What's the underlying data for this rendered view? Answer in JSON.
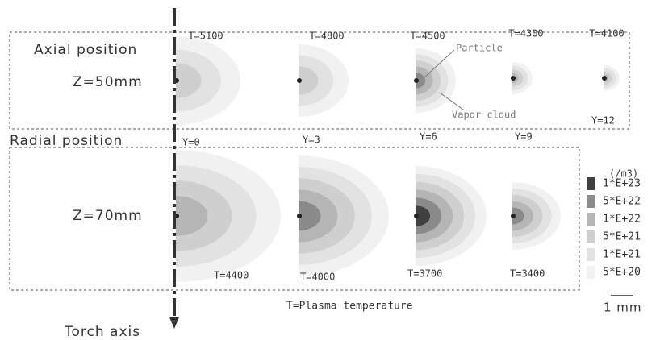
{
  "labels": {
    "axial": "Axial position",
    "radial": "Radial position",
    "torch_axis": "Torch axis",
    "plasma_temperature": "T=Plasma temperature",
    "scale": "1 mm",
    "particle": "Particle",
    "vapor_cloud": "Vapor cloud"
  },
  "rows": [
    {
      "z": "Z=50mm",
      "temperatures": [
        "T=5100",
        "T=4800",
        "T=4500",
        "T=4300",
        "T=4100"
      ]
    },
    {
      "z": "Z=70mm",
      "temperatures": [
        "T=4400",
        "T=4000",
        "T=3700",
        "T=3400"
      ]
    }
  ],
  "radial_positions": [
    "Y=0",
    "Y=3",
    "Y=6",
    "Y=9",
    "Y=12"
  ],
  "legend": {
    "unit": "(/m3)",
    "levels": [
      "1*E+23",
      "5*E+22",
      "1*E+22",
      "5*E+21",
      "1*E+21",
      "5*E+20"
    ]
  }
}
